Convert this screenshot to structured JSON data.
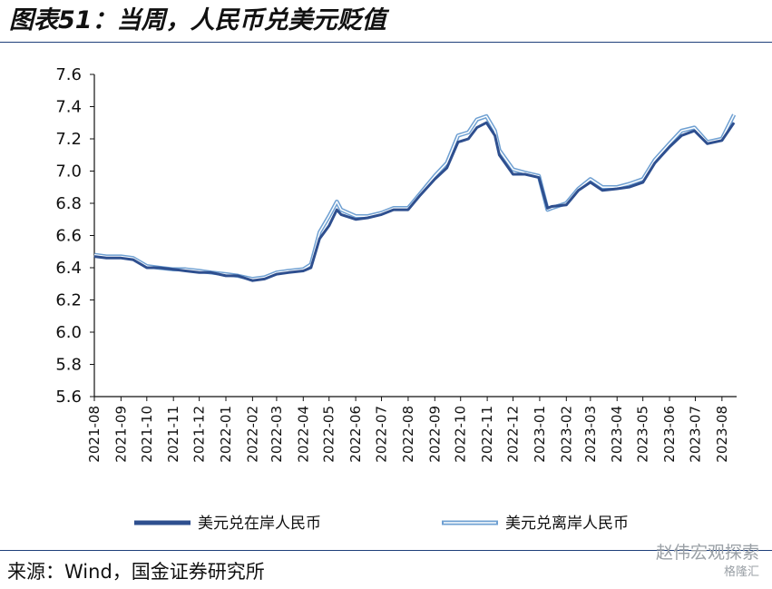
{
  "header": {
    "title": "图表51：当周，人民币兑美元贬值"
  },
  "footer": {
    "source": "来源：Wind，国金证券研究所"
  },
  "watermark": {
    "main": "赵伟宏观探索",
    "sub": "格隆汇"
  },
  "colors": {
    "onshore": "#2e4f8f",
    "offshore_outer": "#6fa0d2",
    "offshore_inner": "#ffffff",
    "axis": "#111111",
    "rule": "#1f3f7a"
  },
  "chart_data": {
    "type": "line",
    "ylim": [
      5.6,
      7.6
    ],
    "yticks": [
      "7.6",
      "7.4",
      "7.2",
      "7.0",
      "6.8",
      "6.6",
      "6.4",
      "6.2",
      "6.0",
      "5.8",
      "5.6"
    ],
    "ytick_values": [
      7.6,
      7.4,
      7.2,
      7.0,
      6.8,
      6.6,
      6.4,
      6.2,
      6.0,
      5.8,
      5.6
    ],
    "xticks": [
      "2021-08",
      "2021-09",
      "2021-10",
      "2021-11",
      "2021-12",
      "2022-01",
      "2022-02",
      "2022-03",
      "2022-04",
      "2022-05",
      "2022-06",
      "2022-07",
      "2022-08",
      "2022-09",
      "2022-10",
      "2022-11",
      "2022-12",
      "2023-01",
      "2023-02",
      "2023-03",
      "2023-04",
      "2023-05",
      "2023-06",
      "2023-07",
      "2023-08"
    ],
    "legend_position": "bottom",
    "series": [
      {
        "name": "美元兑在岸人民币",
        "x": [
          "2021-08-01",
          "2021-08-15",
          "2021-09-01",
          "2021-09-15",
          "2021-10-01",
          "2021-10-15",
          "2021-11-01",
          "2021-11-15",
          "2021-12-01",
          "2021-12-15",
          "2022-01-01",
          "2022-01-15",
          "2022-02-01",
          "2022-02-15",
          "2022-03-01",
          "2022-03-15",
          "2022-04-01",
          "2022-04-10",
          "2022-04-20",
          "2022-05-01",
          "2022-05-10",
          "2022-05-15",
          "2022-06-01",
          "2022-06-15",
          "2022-07-01",
          "2022-07-15",
          "2022-08-01",
          "2022-08-15",
          "2022-09-01",
          "2022-09-15",
          "2022-09-28",
          "2022-10-10",
          "2022-10-20",
          "2022-10-31",
          "2022-11-10",
          "2022-11-15",
          "2022-12-01",
          "2022-12-15",
          "2022-12-31",
          "2023-01-10",
          "2023-01-15",
          "2023-02-01",
          "2023-02-15",
          "2023-03-01",
          "2023-03-15",
          "2023-04-01",
          "2023-04-15",
          "2023-05-01",
          "2023-05-15",
          "2023-06-01",
          "2023-06-15",
          "2023-06-30",
          "2023-07-15",
          "2023-08-01",
          "2023-08-15"
        ],
        "values": [
          6.47,
          6.46,
          6.46,
          6.45,
          6.4,
          6.4,
          6.39,
          6.38,
          6.37,
          6.37,
          6.35,
          6.35,
          6.32,
          6.33,
          6.36,
          6.37,
          6.38,
          6.4,
          6.58,
          6.66,
          6.76,
          6.73,
          6.7,
          6.71,
          6.73,
          6.76,
          6.76,
          6.85,
          6.95,
          7.02,
          7.18,
          7.2,
          7.27,
          7.3,
          7.22,
          7.1,
          6.98,
          6.98,
          6.96,
          6.77,
          6.78,
          6.79,
          6.88,
          6.93,
          6.88,
          6.89,
          6.9,
          6.93,
          7.05,
          7.15,
          7.22,
          7.25,
          7.17,
          7.19,
          7.3
        ]
      },
      {
        "name": "美元兑离岸人民币",
        "x": [
          "2021-08-01",
          "2021-08-15",
          "2021-09-01",
          "2021-09-15",
          "2021-10-01",
          "2021-10-15",
          "2021-11-01",
          "2021-11-15",
          "2021-12-01",
          "2021-12-15",
          "2022-01-01",
          "2022-01-15",
          "2022-02-01",
          "2022-02-15",
          "2022-03-01",
          "2022-03-15",
          "2022-04-01",
          "2022-04-10",
          "2022-04-20",
          "2022-05-01",
          "2022-05-10",
          "2022-05-15",
          "2022-06-01",
          "2022-06-15",
          "2022-07-01",
          "2022-07-15",
          "2022-08-01",
          "2022-08-15",
          "2022-09-01",
          "2022-09-15",
          "2022-09-28",
          "2022-10-10",
          "2022-10-20",
          "2022-10-31",
          "2022-11-10",
          "2022-11-15",
          "2022-12-01",
          "2022-12-15",
          "2022-12-31",
          "2023-01-10",
          "2023-01-15",
          "2023-02-01",
          "2023-02-15",
          "2023-03-01",
          "2023-03-15",
          "2023-04-01",
          "2023-04-15",
          "2023-05-01",
          "2023-05-15",
          "2023-06-01",
          "2023-06-15",
          "2023-06-30",
          "2023-07-15",
          "2023-08-01",
          "2023-08-15"
        ],
        "values": [
          6.48,
          6.47,
          6.47,
          6.46,
          6.41,
          6.4,
          6.39,
          6.39,
          6.38,
          6.37,
          6.36,
          6.35,
          6.33,
          6.34,
          6.37,
          6.38,
          6.39,
          6.42,
          6.62,
          6.72,
          6.81,
          6.76,
          6.72,
          6.72,
          6.74,
          6.77,
          6.77,
          6.86,
          6.97,
          7.05,
          7.22,
          7.24,
          7.32,
          7.34,
          7.25,
          7.13,
          7.01,
          6.99,
          6.97,
          6.76,
          6.77,
          6.8,
          6.89,
          6.95,
          6.9,
          6.9,
          6.92,
          6.95,
          7.07,
          7.17,
          7.25,
          7.27,
          7.18,
          7.2,
          7.35
        ]
      }
    ]
  }
}
